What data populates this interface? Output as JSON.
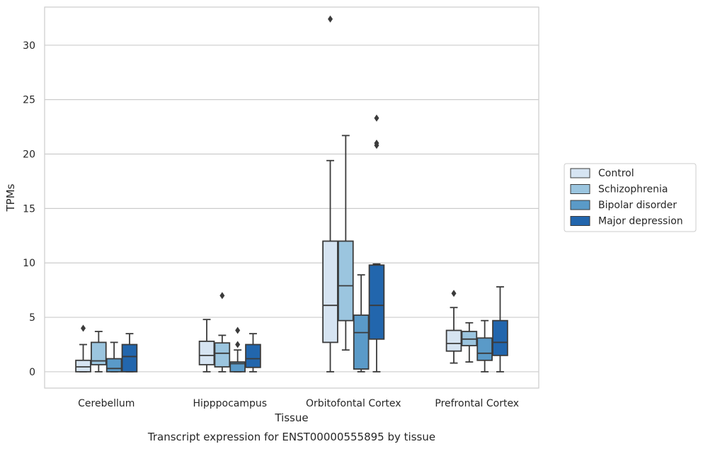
{
  "caption": "Transcript expression for ENST00000555895 by tissue",
  "chart_data": {
    "type": "box",
    "xlabel": "Tissue",
    "ylabel": "TPMs",
    "ylim": [
      -1.5,
      33.5
    ],
    "yticks": [
      0,
      5,
      10,
      15,
      20,
      25,
      30
    ],
    "grid": true,
    "legend_position": "right",
    "categories": [
      "Cerebellum",
      "Hipppocampus",
      "Orbitofontal Cortex",
      "Prefrontal Cortex"
    ],
    "series": [
      {
        "name": "Control",
        "color": "#d6e4f2",
        "boxes": [
          {
            "whisker_low": 0,
            "q1": 0,
            "median": 0.45,
            "q3": 1.05,
            "whisker_high": 2.5,
            "outliers": [
              4.0
            ]
          },
          {
            "whisker_low": 0,
            "q1": 0.65,
            "median": 1.5,
            "q3": 2.8,
            "whisker_high": 4.8,
            "outliers": []
          },
          {
            "whisker_low": 0,
            "q1": 2.7,
            "median": 6.1,
            "q3": 12.0,
            "whisker_high": 19.4,
            "outliers": [
              32.4
            ]
          },
          {
            "whisker_low": 0.8,
            "q1": 1.9,
            "median": 2.6,
            "q3": 3.8,
            "whisker_high": 5.9,
            "outliers": [
              7.2
            ]
          }
        ]
      },
      {
        "name": "Schizophrenia",
        "color": "#9bc5df",
        "boxes": [
          {
            "whisker_low": 0,
            "q1": 0.65,
            "median": 1.0,
            "q3": 2.7,
            "whisker_high": 3.7,
            "outliers": []
          },
          {
            "whisker_low": 0,
            "q1": 0.45,
            "median": 1.7,
            "q3": 2.65,
            "whisker_high": 3.35,
            "outliers": [
              7.0
            ]
          },
          {
            "whisker_low": 2.0,
            "q1": 4.7,
            "median": 7.9,
            "q3": 12.0,
            "whisker_high": 21.7,
            "outliers": []
          },
          {
            "whisker_low": 0.9,
            "q1": 2.4,
            "median": 3.0,
            "q3": 3.7,
            "whisker_high": 4.5,
            "outliers": []
          }
        ]
      },
      {
        "name": "Bipolar disorder",
        "color": "#5a9ac8",
        "boxes": [
          {
            "whisker_low": 0,
            "q1": 0,
            "median": 0.3,
            "q3": 1.2,
            "whisker_high": 2.7,
            "outliers": []
          },
          {
            "whisker_low": 0,
            "q1": 0,
            "median": 0.75,
            "q3": 0.9,
            "whisker_high": 2.0,
            "outliers": [
              2.5,
              3.8
            ]
          },
          {
            "whisker_low": 0,
            "q1": 0.25,
            "median": 3.6,
            "q3": 5.2,
            "whisker_high": 8.9,
            "outliers": []
          },
          {
            "whisker_low": 0,
            "q1": 1.05,
            "median": 1.7,
            "q3": 3.1,
            "whisker_high": 4.7,
            "outliers": []
          }
        ]
      },
      {
        "name": "Major depression",
        "color": "#2266ad",
        "boxes": [
          {
            "whisker_low": 0,
            "q1": 0,
            "median": 1.4,
            "q3": 2.5,
            "whisker_high": 3.5,
            "outliers": []
          },
          {
            "whisker_low": 0,
            "q1": 0.4,
            "median": 1.2,
            "q3": 2.5,
            "whisker_high": 3.5,
            "outliers": []
          },
          {
            "whisker_low": 0,
            "q1": 3.0,
            "median": 6.1,
            "q3": 9.8,
            "whisker_high": 9.9,
            "outliers": [
              20.8,
              21.0,
              23.3
            ]
          },
          {
            "whisker_low": 0,
            "q1": 1.5,
            "median": 2.7,
            "q3": 4.7,
            "whisker_high": 7.8,
            "outliers": []
          }
        ]
      }
    ]
  }
}
